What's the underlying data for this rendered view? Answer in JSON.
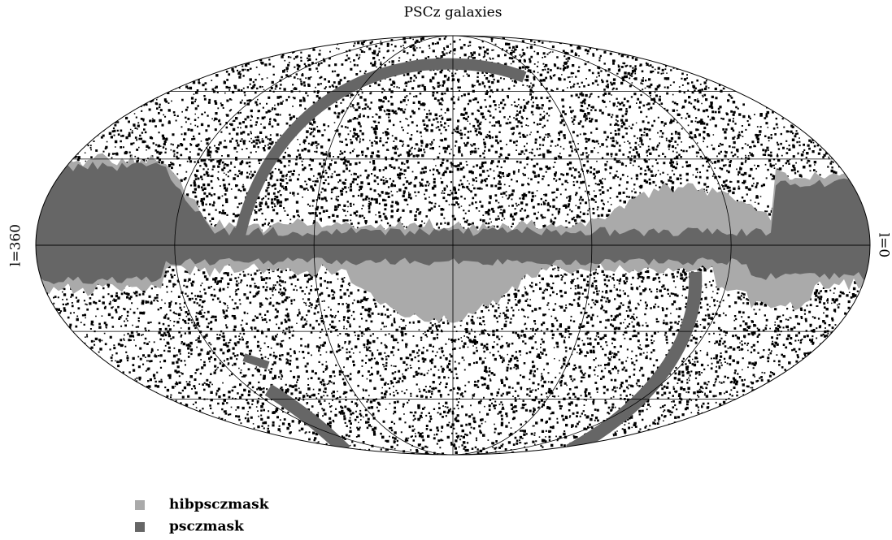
{
  "title": "PSCz galaxies",
  "axis_labels": {
    "left": "l=360",
    "right": "l=0"
  },
  "legend": [
    {
      "name": "hibpsczmask",
      "color": "#aaaaaa"
    },
    {
      "name": "psczmask",
      "color": "#666666"
    }
  ]
}
